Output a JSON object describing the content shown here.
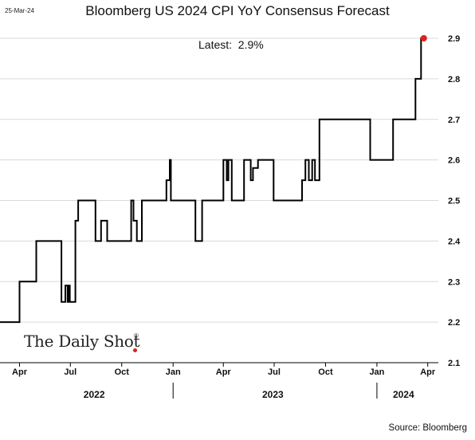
{
  "header": {
    "date_stamp": "25-Mar-24",
    "title": "Bloomberg US 2024 CPI YoY Consensus Forecast",
    "latest_label": "Latest:  2.9%"
  },
  "branding": {
    "name": "The Daily Shot",
    "reg": "®"
  },
  "footer": {
    "source": "Source: Bloomberg"
  },
  "colors": {
    "line": "#000000",
    "grid": "#d9d9d9",
    "latest_marker": "#e02020",
    "background": "#ffffff"
  },
  "chart_data": {
    "type": "line",
    "title": "Bloomberg US 2024 CPI YoY Consensus Forecast",
    "xlabel": "",
    "ylabel": "",
    "ylim": [
      2.1,
      2.9
    ],
    "yticks": [
      "2.1",
      "2.2",
      "2.3",
      "2.4",
      "2.5",
      "2.6",
      "2.7",
      "2.8",
      "2.9"
    ],
    "xlim": [
      "2022-02-25",
      "2024-04-20"
    ],
    "xticks": [
      {
        "date": "2022-04-01",
        "label": "Apr"
      },
      {
        "date": "2022-07-01",
        "label": "Jul"
      },
      {
        "date": "2022-10-01",
        "label": "Oct"
      },
      {
        "date": "2023-01-01",
        "label": "Jan"
      },
      {
        "date": "2023-04-01",
        "label": "Apr"
      },
      {
        "date": "2023-07-01",
        "label": "Jul"
      },
      {
        "date": "2023-10-01",
        "label": "Oct"
      },
      {
        "date": "2024-01-01",
        "label": "Jan"
      },
      {
        "date": "2024-04-01",
        "label": "Apr"
      }
    ],
    "years": [
      {
        "label": "2022",
        "center": "2022-08-15"
      },
      {
        "label": "2023",
        "center": "2023-07-01"
      },
      {
        "label": "2024",
        "center": "2024-02-20"
      }
    ],
    "year_separators": [
      "2023-01-01",
      "2024-01-01"
    ],
    "grid": "horizontal",
    "latest_annotation": "Latest:  2.9%",
    "series": [
      {
        "values": [
          [
            "2022-02-25",
            2.2
          ],
          [
            "2022-04-01",
            2.2
          ],
          [
            "2022-04-01",
            2.3
          ],
          [
            "2022-05-01",
            2.3
          ],
          [
            "2022-05-01",
            2.4
          ],
          [
            "2022-06-15",
            2.4
          ],
          [
            "2022-06-15",
            2.25
          ],
          [
            "2022-06-22",
            2.25
          ],
          [
            "2022-06-22",
            2.29
          ],
          [
            "2022-06-26",
            2.29
          ],
          [
            "2022-06-26",
            2.25
          ],
          [
            "2022-06-28",
            2.25
          ],
          [
            "2022-06-28",
            2.29
          ],
          [
            "2022-06-30",
            2.29
          ],
          [
            "2022-06-30",
            2.25
          ],
          [
            "2022-07-10",
            2.25
          ],
          [
            "2022-07-10",
            2.45
          ],
          [
            "2022-07-15",
            2.45
          ],
          [
            "2022-07-15",
            2.5
          ],
          [
            "2022-08-15",
            2.5
          ],
          [
            "2022-08-15",
            2.4
          ],
          [
            "2022-08-25",
            2.4
          ],
          [
            "2022-08-25",
            2.45
          ],
          [
            "2022-09-05",
            2.45
          ],
          [
            "2022-09-05",
            2.4
          ],
          [
            "2022-10-18",
            2.4
          ],
          [
            "2022-10-18",
            2.5
          ],
          [
            "2022-10-22",
            2.5
          ],
          [
            "2022-10-22",
            2.45
          ],
          [
            "2022-10-28",
            2.45
          ],
          [
            "2022-10-28",
            2.4
          ],
          [
            "2022-11-06",
            2.4
          ],
          [
            "2022-11-06",
            2.5
          ],
          [
            "2022-12-20",
            2.5
          ],
          [
            "2022-12-20",
            2.55
          ],
          [
            "2022-12-26",
            2.55
          ],
          [
            "2022-12-26",
            2.6
          ],
          [
            "2022-12-28",
            2.6
          ],
          [
            "2022-12-28",
            2.5
          ],
          [
            "2023-02-10",
            2.5
          ],
          [
            "2023-02-10",
            2.4
          ],
          [
            "2023-02-22",
            2.4
          ],
          [
            "2023-02-22",
            2.5
          ],
          [
            "2023-04-01",
            2.5
          ],
          [
            "2023-04-01",
            2.6
          ],
          [
            "2023-04-07",
            2.6
          ],
          [
            "2023-04-07",
            2.55
          ],
          [
            "2023-04-10",
            2.55
          ],
          [
            "2023-04-10",
            2.6
          ],
          [
            "2023-04-16",
            2.6
          ],
          [
            "2023-04-16",
            2.5
          ],
          [
            "2023-05-08",
            2.5
          ],
          [
            "2023-05-08",
            2.6
          ],
          [
            "2023-05-20",
            2.6
          ],
          [
            "2023-05-20",
            2.55
          ],
          [
            "2023-05-24",
            2.55
          ],
          [
            "2023-05-24",
            2.58
          ],
          [
            "2023-06-02",
            2.58
          ],
          [
            "2023-06-02",
            2.6
          ],
          [
            "2023-06-30",
            2.6
          ],
          [
            "2023-06-30",
            2.5
          ],
          [
            "2023-08-20",
            2.5
          ],
          [
            "2023-08-20",
            2.55
          ],
          [
            "2023-08-26",
            2.55
          ],
          [
            "2023-08-26",
            2.6
          ],
          [
            "2023-09-01",
            2.6
          ],
          [
            "2023-09-01",
            2.55
          ],
          [
            "2023-09-07",
            2.55
          ],
          [
            "2023-09-07",
            2.6
          ],
          [
            "2023-09-12",
            2.6
          ],
          [
            "2023-09-12",
            2.55
          ],
          [
            "2023-09-20",
            2.55
          ],
          [
            "2023-09-20",
            2.7
          ],
          [
            "2023-12-20",
            2.7
          ],
          [
            "2023-12-20",
            2.6
          ],
          [
            "2024-01-30",
            2.6
          ],
          [
            "2024-01-30",
            2.7
          ],
          [
            "2024-03-10",
            2.7
          ],
          [
            "2024-03-10",
            2.8
          ],
          [
            "2024-03-20",
            2.8
          ],
          [
            "2024-03-20",
            2.9
          ],
          [
            "2024-03-25",
            2.9
          ]
        ]
      }
    ]
  }
}
